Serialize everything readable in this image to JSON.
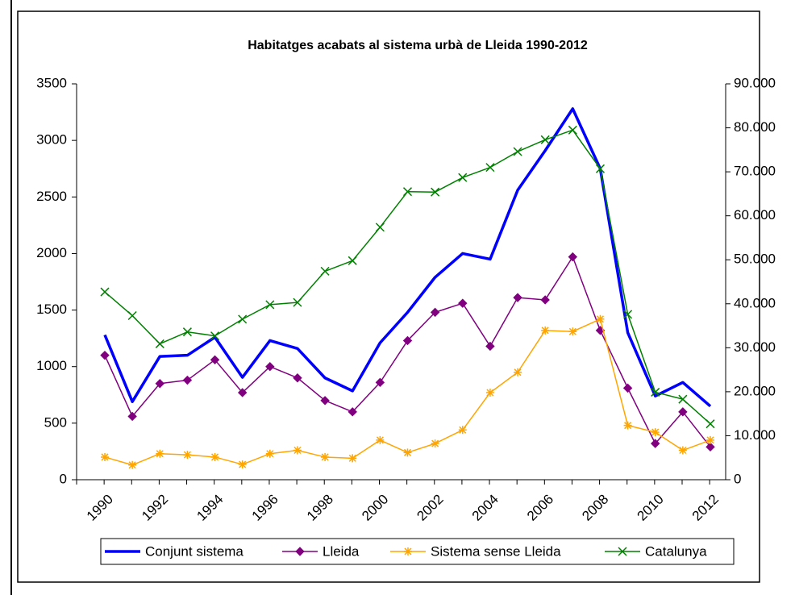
{
  "chart_data": {
    "type": "line",
    "title": "Habitatges acabats al sistema urbà de Lleida 1990-2012",
    "categories": [
      "1990",
      null,
      "1992",
      null,
      "1994",
      null,
      "1996",
      null,
      "1998",
      null,
      "2000",
      null,
      "2002",
      null,
      "2004",
      null,
      "2006",
      null,
      "2008",
      null,
      "2010",
      null,
      "2012"
    ],
    "ylim": [
      0,
      3500
    ],
    "yticks": [
      0,
      500,
      1000,
      1500,
      2000,
      2500,
      3000,
      3500
    ],
    "y2lim": [
      0,
      90000
    ],
    "y2ticks": [
      0,
      {
        "value": 10000,
        "label": "10.000"
      },
      {
        "value": 20000,
        "label": "20.000"
      },
      {
        "value": 30000,
        "label": "30.000"
      },
      {
        "value": 40000,
        "label": "40.000"
      },
      {
        "value": 50000,
        "label": "50.000"
      },
      {
        "value": 60000,
        "label": "60.000"
      },
      {
        "value": 70000,
        "label": "70.000"
      },
      {
        "value": 80000,
        "label": "80.000"
      },
      {
        "value": 90000,
        "label": "90.000"
      }
    ],
    "legend": "bottom",
    "series": [
      {
        "name": "Conjunt sistema",
        "color": "#0000ff",
        "marker": "none",
        "values": [
          1280,
          690,
          1090,
          1100,
          1260,
          905,
          1230,
          1160,
          900,
          785,
          1210,
          1480,
          1790,
          2000,
          1950,
          2560,
          2910,
          3280,
          2750,
          1300,
          740,
          860,
          650
        ]
      },
      {
        "name": "Lleida",
        "color": "#800080",
        "marker": "diamond",
        "values": [
          1100,
          560,
          850,
          880,
          1060,
          770,
          1000,
          900,
          700,
          600,
          860,
          1230,
          1480,
          1560,
          1180,
          1610,
          1590,
          1970,
          1320,
          810,
          320,
          600,
          290
        ]
      },
      {
        "name": "Sistema sense Lleida",
        "color": "#ffa500",
        "marker": "star",
        "values": [
          200,
          130,
          230,
          220,
          200,
          135,
          230,
          260,
          200,
          190,
          350,
          240,
          320,
          440,
          770,
          950,
          1320,
          1310,
          1420,
          480,
          420,
          260,
          350
        ]
      },
      {
        "name": "Catalunya",
        "color": "#008000",
        "marker": "x",
        "axis": "y2",
        "values": [
          42700,
          37300,
          30900,
          33600,
          32700,
          36500,
          39800,
          40300,
          47400,
          49800,
          57400,
          65500,
          65400,
          68700,
          71000,
          74600,
          77300,
          79500,
          70700,
          37600,
          19900,
          18300,
          12700
        ]
      }
    ]
  }
}
